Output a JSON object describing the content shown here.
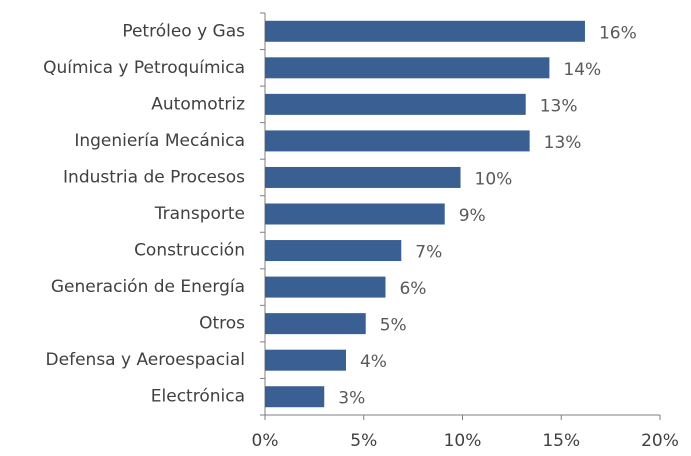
{
  "chart_data": {
    "type": "barh",
    "categories": [
      "Petróleo y Gas",
      "Química y Petroquímica",
      "Automotriz",
      "Ingeniería Mecánica",
      "Industria de Procesos",
      "Transporte",
      "Construcción",
      "Generación de Energía",
      "Otros",
      "Defensa y Aeroespacial",
      "Electrónica"
    ],
    "values": [
      16.2,
      14.4,
      13.2,
      13.4,
      9.9,
      9.1,
      6.9,
      6.1,
      5.1,
      4.1,
      3.0
    ],
    "value_labels": [
      "16%",
      "14%",
      "13%",
      "13%",
      "10%",
      "9%",
      "7%",
      "6%",
      "5%",
      "4%",
      "3%"
    ],
    "color": "#3a5f92",
    "xlim": [
      0,
      20
    ],
    "xticks": [
      {
        "value": 0,
        "label": "0%"
      },
      {
        "value": 5,
        "label": "5%"
      },
      {
        "value": 10,
        "label": "10%"
      },
      {
        "value": 15,
        "label": "15%"
      },
      {
        "value": 20,
        "label": "20%"
      }
    ],
    "grid": false
  }
}
